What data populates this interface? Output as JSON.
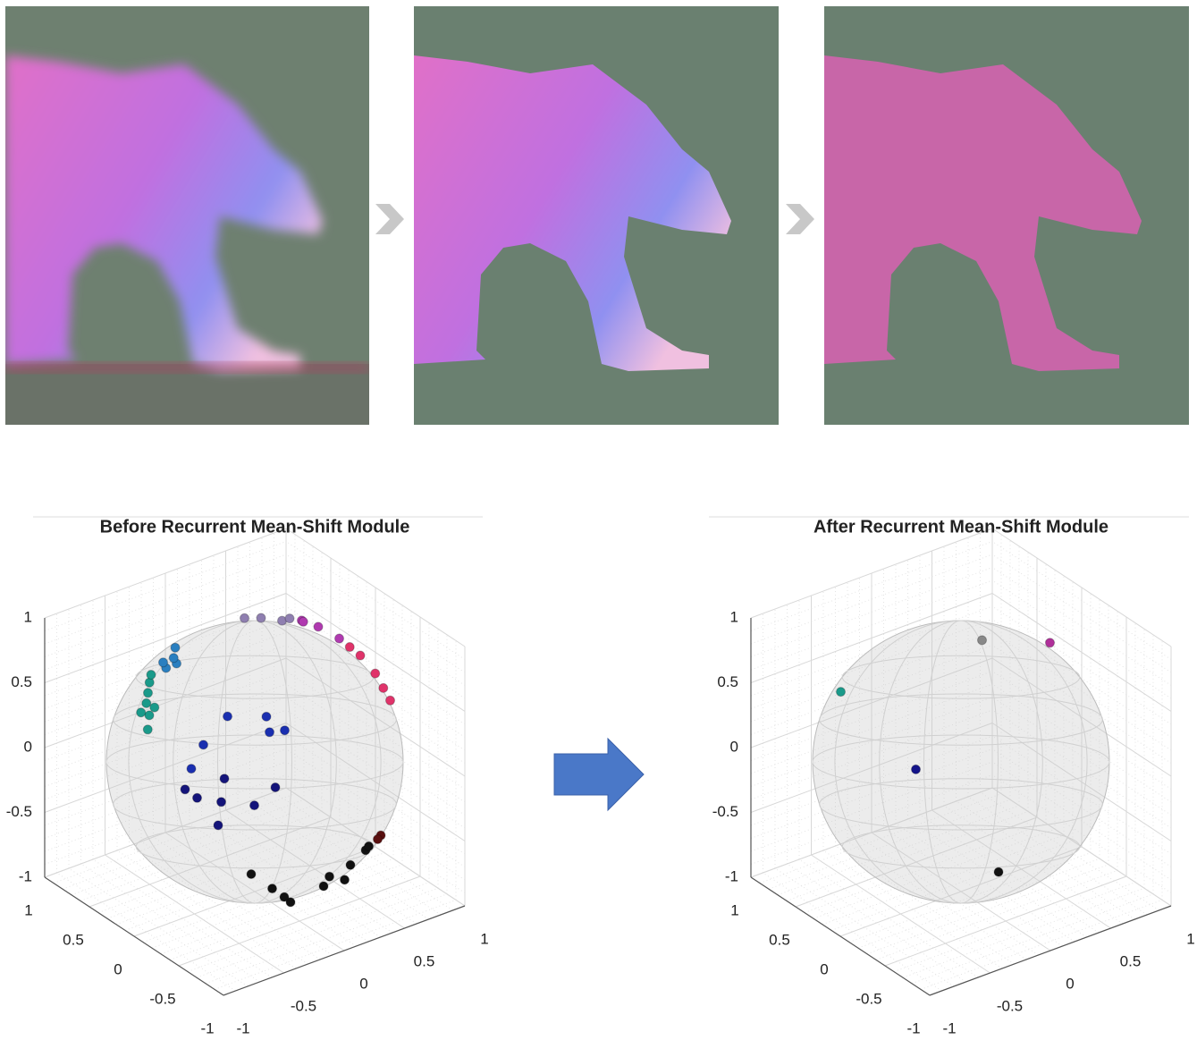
{
  "chart_data": [
    {
      "type": "scatter3d",
      "title": "Before Recurrent Mean-Shift Module",
      "xlim": [
        -1,
        1
      ],
      "ylim": [
        -1,
        1
      ],
      "zlim": [
        -1,
        1
      ],
      "xticks": [
        -1,
        -0.5,
        0,
        0.5,
        1
      ],
      "yticks": [
        -1,
        -0.5,
        0,
        0.5,
        1
      ],
      "zticks": [
        -1,
        -0.5,
        0,
        0.5,
        1
      ],
      "grid": true,
      "series": [
        {
          "color": "#1a9a8a",
          "x": [
            -0.8,
            -0.75,
            -0.7,
            -0.65,
            -0.85,
            -0.6,
            -0.72,
            -0.78
          ],
          "y": [
            0.1,
            0.2,
            0.25,
            0.3,
            0.05,
            0.35,
            0.15,
            0.22
          ],
          "z": [
            0.59,
            0.62,
            0.66,
            0.7,
            0.52,
            0.72,
            0.6,
            0.55
          ]
        },
        {
          "color": "#2a7fc0",
          "x": [
            -0.5,
            -0.45,
            -0.55,
            -0.4,
            -0.5
          ],
          "y": [
            0.2,
            0.3,
            0.25,
            0.35,
            0.35
          ],
          "z": [
            0.84,
            0.82,
            0.8,
            0.86,
            0.78
          ]
        },
        {
          "color": "#8f7fb0",
          "x": [
            0.2,
            0.3,
            0.1,
            0.4
          ],
          "y": [
            0.2,
            0.1,
            0.25,
            0.15
          ],
          "z": [
            0.95,
            0.94,
            0.96,
            0.9
          ]
        },
        {
          "color": "#b03ab0",
          "x": [
            0.5,
            0.6,
            0.55,
            0.7
          ],
          "y": [
            0.15,
            0.1,
            0.2,
            0.0
          ],
          "z": [
            0.85,
            0.79,
            0.8,
            0.71
          ]
        },
        {
          "color": "#e0336a",
          "x": [
            0.8,
            0.85,
            0.9,
            0.88,
            0.75
          ],
          "y": [
            -0.1,
            -0.2,
            -0.3,
            -0.25,
            -0.05
          ],
          "z": [
            0.59,
            0.48,
            0.3,
            0.38,
            0.65
          ]
        },
        {
          "color": "#1a2fb0",
          "x": [
            -0.3,
            -0.1,
            -0.5,
            -0.2,
            0.1,
            -0.6
          ],
          "y": [
            -0.1,
            -0.3,
            -0.1,
            -0.4,
            -0.2,
            -0.1
          ],
          "z": [
            0.5,
            0.4,
            0.35,
            0.6,
            0.3,
            0.2
          ]
        },
        {
          "color": "#14147a",
          "x": [
            -0.7,
            -0.5,
            -0.6,
            -0.4,
            -0.3,
            -0.8,
            -0.2
          ],
          "y": [
            -0.3,
            -0.3,
            -0.4,
            -0.2,
            -0.4,
            -0.3,
            -0.5
          ],
          "z": [
            0.1,
            0,
            -0.1,
            0.1,
            -0.05,
            0.2,
            0.1
          ]
        },
        {
          "color": "#111111",
          "x": [
            0.3,
            0,
            0.2,
            -0.2,
            0.4,
            -0.3,
            0.1,
            -0.4,
            0.5,
            0.2
          ],
          "y": [
            -0.6,
            -0.4,
            -0.5,
            -0.6,
            -0.7,
            -0.6,
            -0.7,
            -0.5,
            -0.6,
            -0.8
          ],
          "z": [
            -0.74,
            -0.9,
            -0.8,
            -0.7,
            -0.5,
            -0.6,
            -0.6,
            -0.5,
            -0.55,
            -0.5
          ]
        },
        {
          "color": "#5a1010",
          "x": [
            0.6,
            0.5
          ],
          "y": [
            -0.6,
            -0.7
          ],
          "z": [
            -0.5,
            -0.45
          ]
        }
      ]
    },
    {
      "type": "scatter3d",
      "title": "After Recurrent Mean-Shift Module",
      "xlim": [
        -1,
        1
      ],
      "ylim": [
        -1,
        1
      ],
      "zlim": [
        -1,
        1
      ],
      "xticks": [
        -1,
        -0.5,
        0,
        0.5,
        1
      ],
      "yticks": [
        -1,
        -0.5,
        0,
        0.5,
        1
      ],
      "zticks": [
        -1,
        -0.5,
        0,
        0.5,
        1
      ],
      "grid": true,
      "series": [
        {
          "color": "#888888",
          "x": [
            0.1
          ],
          "y": [
            -0.1
          ],
          "z": [
            0.95
          ]
        },
        {
          "color": "#1a9a8a",
          "x": [
            -0.7
          ],
          "y": [
            0.4
          ],
          "z": [
            0.6
          ]
        },
        {
          "color": "#b0309a",
          "x": [
            0.7
          ],
          "y": [
            -0.05
          ],
          "z": [
            0.7
          ]
        },
        {
          "color": "#14148a",
          "x": [
            -0.3
          ],
          "y": [
            0.1
          ],
          "z": [
            0
          ]
        },
        {
          "color": "#111111",
          "x": [
            0.2
          ],
          "y": [
            -0.15
          ],
          "z": [
            -0.85
          ]
        }
      ]
    }
  ]
}
